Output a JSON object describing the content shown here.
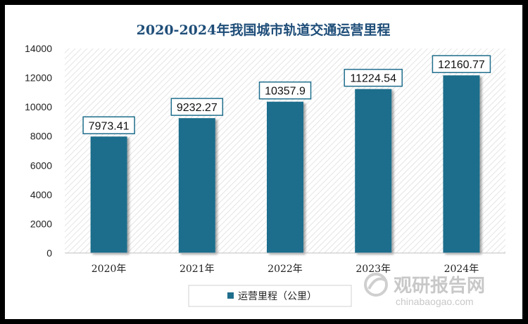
{
  "chart_data": {
    "type": "bar",
    "title": "2020-2024年我国城市轨道交通运营里程",
    "categories": [
      "2020年",
      "2021年",
      "2022年",
      "2023年",
      "2024年"
    ],
    "series": [
      {
        "name": "运营里程（公里）",
        "values": [
          7973.41,
          9232.27,
          10357.9,
          11224.54,
          12160.77
        ],
        "labels": [
          "7973.41",
          "9232.27",
          "10357.9",
          "11224.54",
          "12160.77"
        ]
      }
    ],
    "ylim": [
      0,
      14000
    ],
    "yticks": [
      0,
      2000,
      4000,
      6000,
      8000,
      10000,
      12000,
      14000
    ],
    "legend_position": "bottom",
    "bar_color": "#1f6e8c"
  },
  "watermark": {
    "cn": "观研报告网",
    "en": "chinabaogao.com"
  }
}
